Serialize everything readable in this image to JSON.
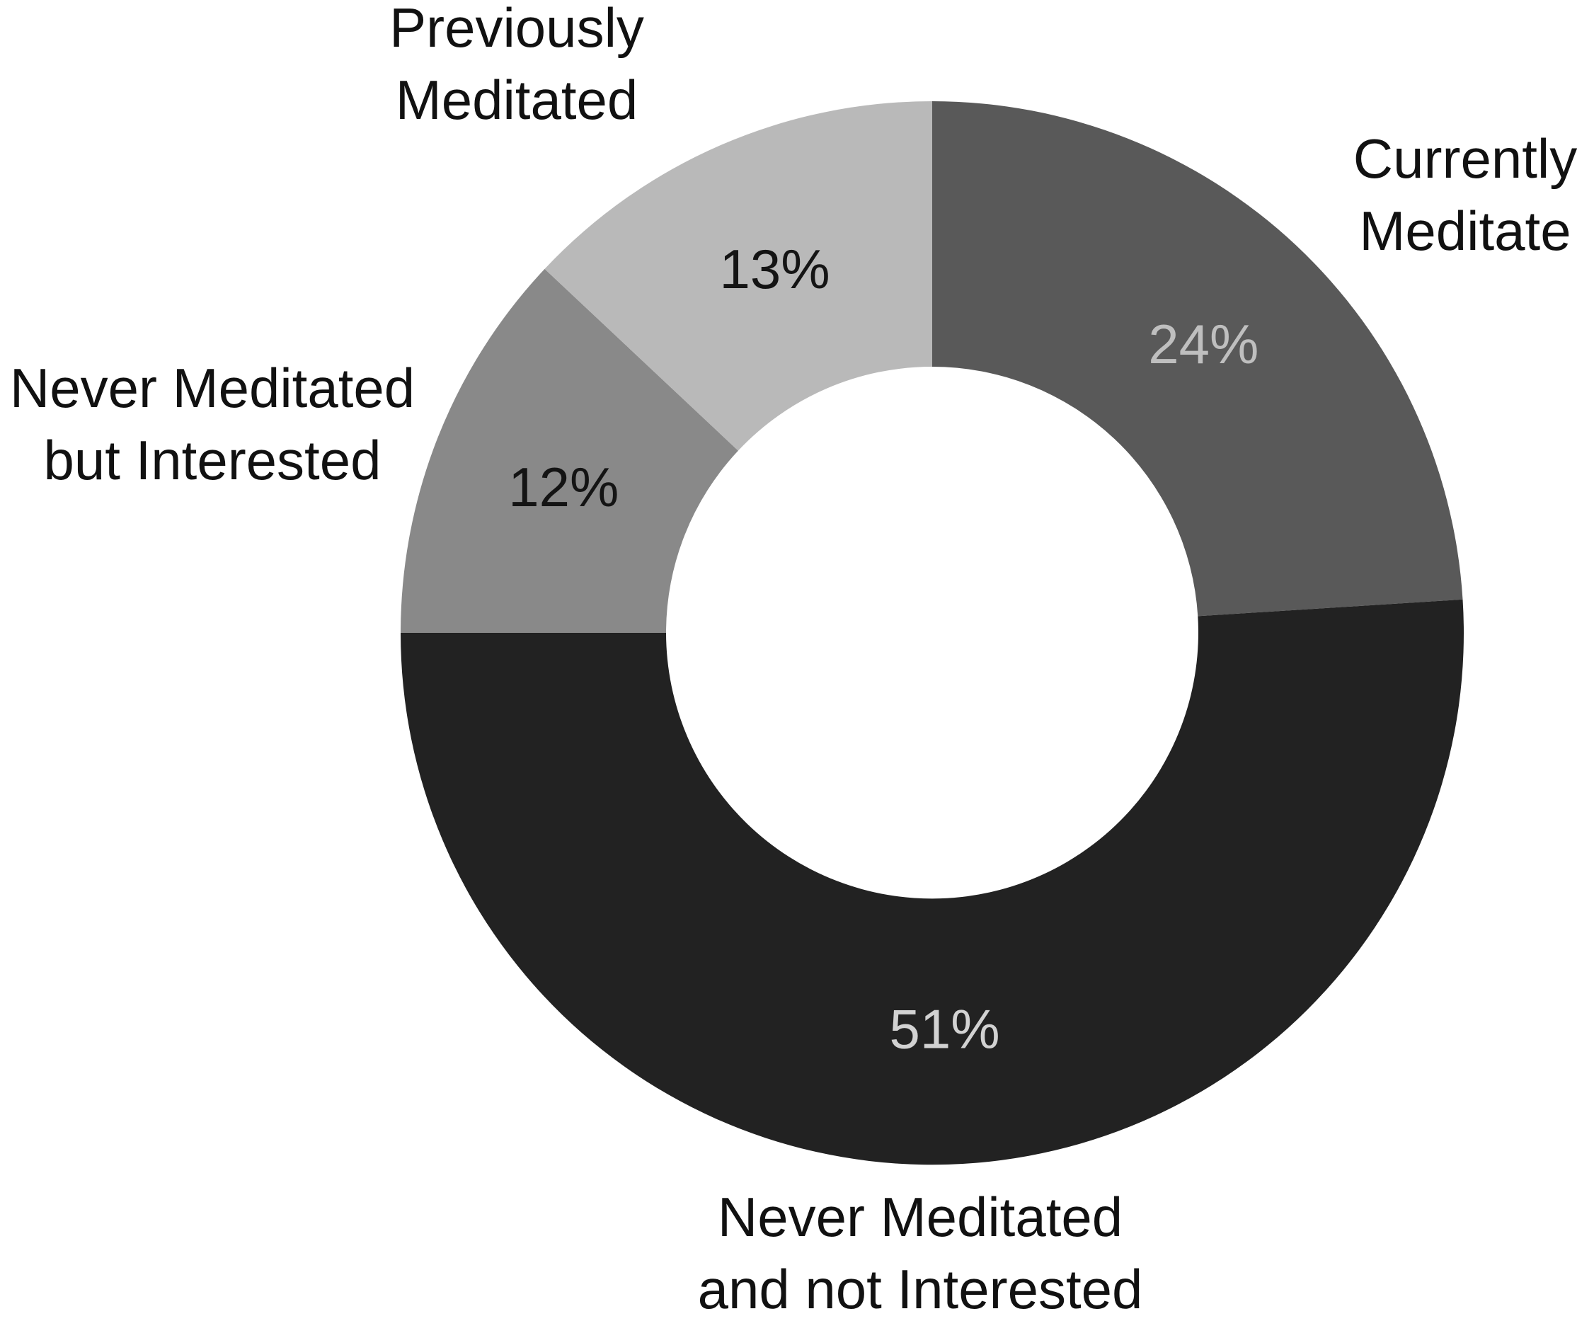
{
  "figure": {
    "background": "#ffffff",
    "text_color": "#111111"
  },
  "chart_data": {
    "type": "pie",
    "subtype": "donut",
    "title": "",
    "legend_position": "none",
    "hole_ratio": 0.5,
    "start_angle_deg": 0,
    "direction": "clockwise",
    "units": "percent",
    "categories": [
      "Currently Meditate",
      "Never Meditated and not Interested",
      "Never Meditated but Interested",
      "Previously Meditated"
    ],
    "values": [
      24,
      51,
      12,
      13
    ],
    "slices": [
      {
        "label": "Currently Meditate",
        "label_lines": [
          "Currently",
          "Meditate"
        ],
        "value": 24,
        "pct_text": "24%",
        "color": "#595959",
        "pct_color": "#bfbfbf"
      },
      {
        "label": "Never Meditated and not Interested",
        "label_lines": [
          "Never Meditated",
          "and not Interested"
        ],
        "value": 51,
        "pct_text": "51%",
        "color": "#222222",
        "pct_color": "#d2d2d2"
      },
      {
        "label": "Never Meditated but Interested",
        "label_lines": [
          "Never Meditated",
          "but Interested"
        ],
        "value": 12,
        "pct_text": "12%",
        "color": "#898989",
        "pct_color": "#141414"
      },
      {
        "label": "Previously Meditated",
        "label_lines": [
          "Previously",
          "Meditated"
        ],
        "value": 13,
        "pct_text": "13%",
        "color": "#b9b9b9",
        "pct_color": "#141414"
      }
    ]
  }
}
